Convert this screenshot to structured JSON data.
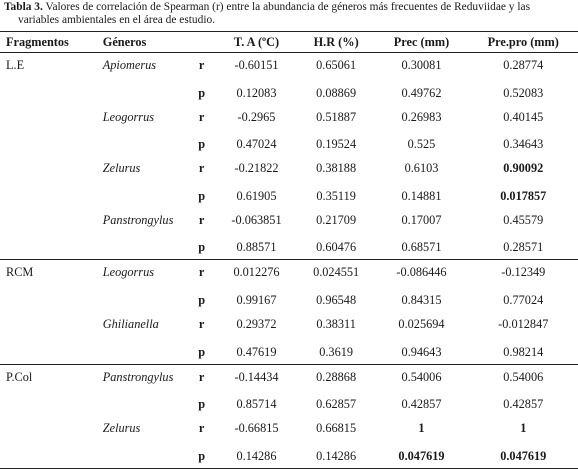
{
  "caption": {
    "label": "Tabla 3.",
    "line1": " Valores de correlación de Spearman (r) entre la abundancia de géneros más frecuentes de Reduviidae y las",
    "line2": "variables ambientales en el área de estudio."
  },
  "headers": {
    "fragmentos": "Fragmentos",
    "generos": "Géneros",
    "ta": "T. A (ºC)",
    "hr": "H.R (%)",
    "prec": "Prec (mm)",
    "prepro": "Pre.pro (mm)"
  },
  "rows": [
    {
      "frag": "L.E",
      "genus": "Apiomerus",
      "stat": "r",
      "ta": "-0.60151",
      "hr": "0.65061",
      "prec": "0.30081",
      "prepro": "0.28774"
    },
    {
      "frag": "",
      "genus": "",
      "stat": "p",
      "ta": "0.12083",
      "hr": "0.08869",
      "prec": "0.49762",
      "prepro": "0.52083"
    },
    {
      "frag": "",
      "genus": "Leogorrus",
      "stat": "r",
      "ta": "-0.2965",
      "hr": "0.51887",
      "prec": "0.26983",
      "prepro": "0.40145"
    },
    {
      "frag": "",
      "genus": "",
      "stat": "p",
      "ta": "0.47024",
      "hr": "0.19524",
      "prec": "0.525",
      "prepro": "0.34643"
    },
    {
      "frag": "",
      "genus": "Zelurus",
      "stat": "r",
      "ta": "-0.21822",
      "hr": "0.38188",
      "prec": "0.6103",
      "prepro": "0.90092"
    },
    {
      "frag": "",
      "genus": "",
      "stat": "p",
      "ta": "0.61905",
      "hr": "0.35119",
      "prec": "0.14881",
      "prepro": "0.017857"
    },
    {
      "frag": "",
      "genus": "Panstrongylus",
      "stat": "r",
      "ta": "-0.063851",
      "hr": "0.21709",
      "prec": "0.17007",
      "prepro": "0.45579"
    },
    {
      "frag": "",
      "genus": "",
      "stat": "p",
      "ta": "0.88571",
      "hr": "0.60476",
      "prec": "0.68571",
      "prepro": "0.28571"
    },
    {
      "frag": "RCM",
      "genus": "Leogorrus",
      "stat": "r",
      "ta": "0.012276",
      "hr": "0.024551",
      "prec": "-0.086446",
      "prepro": "-0.12349"
    },
    {
      "frag": "",
      "genus": "",
      "stat": "p",
      "ta": "0.99167",
      "hr": "0.96548",
      "prec": "0.84315",
      "prepro": "0.77024"
    },
    {
      "frag": "",
      "genus": "Ghilianella",
      "stat": "r",
      "ta": "0.29372",
      "hr": "0.38311",
      "prec": "0.025694",
      "prepro": "-0.012847"
    },
    {
      "frag": "",
      "genus": "",
      "stat": "p",
      "ta": "0.47619",
      "hr": "0.3619",
      "prec": "0.94643",
      "prepro": "0.98214"
    },
    {
      "frag": "P.Col",
      "genus": "Panstrongylus",
      "stat": "r",
      "ta": "-0.14434",
      "hr": "0.28868",
      "prec": "0.54006",
      "prepro": "0.54006"
    },
    {
      "frag": "",
      "genus": "",
      "stat": "p",
      "ta": "0.85714",
      "hr": "0.62857",
      "prec": "0.42857",
      "prepro": "0.42857"
    },
    {
      "frag": "",
      "genus": "Zelurus",
      "stat": "r",
      "ta": "-0.66815",
      "hr": "0.66815",
      "prec": "1",
      "prepro": "1"
    },
    {
      "frag": "",
      "genus": "",
      "stat": "p",
      "ta": "0.14286",
      "hr": "0.14286",
      "prec": "0.047619",
      "prepro": "0.047619"
    }
  ]
}
